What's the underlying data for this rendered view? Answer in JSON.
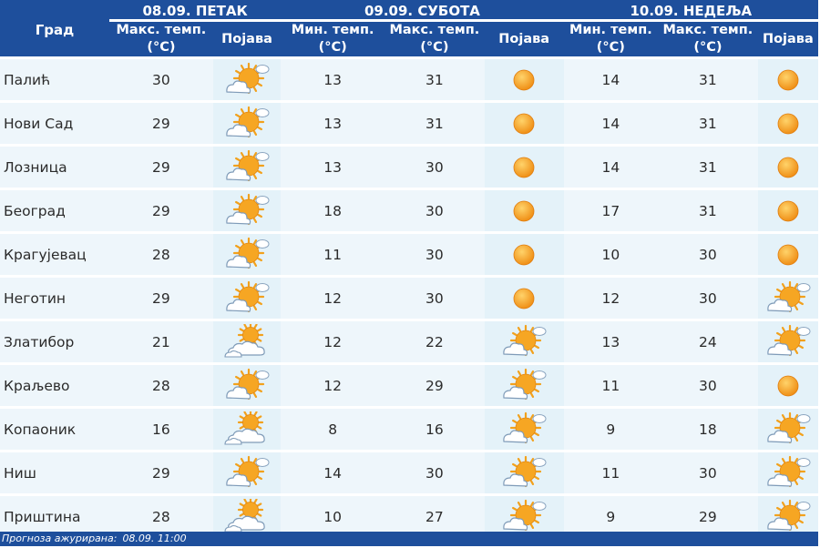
{
  "header": {
    "city_label": "Град",
    "days": [
      {
        "date_label": "08.09. ПЕТАК",
        "max_label": "Макс. темп. (°C)",
        "icon_label": "Појава"
      },
      {
        "date_label": "09.09. СУБОТА",
        "min_label": "Мин. темп. (°C)",
        "max_label": "Макс. темп. (°C)",
        "icon_label": "Појава"
      },
      {
        "date_label": "10.09. НЕДЕЉА",
        "min_label": "Мин. темп. (°C)",
        "max_label": "Макс. темп. (°C)",
        "icon_label": "Појава"
      }
    ]
  },
  "rows": [
    {
      "city": "Палић",
      "d1_max": "30",
      "d1_icon": "sun-cloud-icon",
      "d2_min": "13",
      "d2_max": "31",
      "d2_icon": "sun-icon",
      "d3_min": "14",
      "d3_max": "31",
      "d3_icon": "sun-icon"
    },
    {
      "city": "Нови Сад",
      "d1_max": "29",
      "d1_icon": "sun-cloud-icon",
      "d2_min": "13",
      "d2_max": "31",
      "d2_icon": "sun-icon",
      "d3_min": "14",
      "d3_max": "31",
      "d3_icon": "sun-icon"
    },
    {
      "city": "Лозница",
      "d1_max": "29",
      "d1_icon": "sun-cloud-icon",
      "d2_min": "13",
      "d2_max": "30",
      "d2_icon": "sun-icon",
      "d3_min": "14",
      "d3_max": "31",
      "d3_icon": "sun-icon"
    },
    {
      "city": "Београд",
      "d1_max": "29",
      "d1_icon": "sun-cloud-icon",
      "d2_min": "18",
      "d2_max": "30",
      "d2_icon": "sun-icon",
      "d3_min": "17",
      "d3_max": "31",
      "d3_icon": "sun-icon"
    },
    {
      "city": "Крагујевац",
      "d1_max": "28",
      "d1_icon": "sun-cloud-icon",
      "d2_min": "11",
      "d2_max": "30",
      "d2_icon": "sun-icon",
      "d3_min": "10",
      "d3_max": "30",
      "d3_icon": "sun-icon"
    },
    {
      "city": "Неготин",
      "d1_max": "29",
      "d1_icon": "sun-cloud-icon",
      "d2_min": "12",
      "d2_max": "30",
      "d2_icon": "sun-icon",
      "d3_min": "12",
      "d3_max": "30",
      "d3_icon": "sun-cloud-icon"
    },
    {
      "city": "Златибор",
      "d1_max": "21",
      "d1_icon": "cloud-sun-icon",
      "d2_min": "12",
      "d2_max": "22",
      "d2_icon": "sun-cloud-icon",
      "d3_min": "13",
      "d3_max": "24",
      "d3_icon": "sun-cloud-icon"
    },
    {
      "city": "Краљево",
      "d1_max": "28",
      "d1_icon": "sun-cloud-icon",
      "d2_min": "12",
      "d2_max": "29",
      "d2_icon": "sun-cloud-icon",
      "d3_min": "11",
      "d3_max": "30",
      "d3_icon": "sun-icon"
    },
    {
      "city": "Копаоник",
      "d1_max": "16",
      "d1_icon": "cloud-sun-icon",
      "d2_min": "8",
      "d2_max": "16",
      "d2_icon": "sun-cloud-icon",
      "d3_min": "9",
      "d3_max": "18",
      "d3_icon": "sun-cloud-icon"
    },
    {
      "city": "Ниш",
      "d1_max": "29",
      "d1_icon": "sun-cloud-icon",
      "d2_min": "14",
      "d2_max": "30",
      "d2_icon": "sun-cloud-icon",
      "d3_min": "11",
      "d3_max": "30",
      "d3_icon": "sun-cloud-icon"
    },
    {
      "city": "Приштина",
      "d1_max": "28",
      "d1_icon": "cloud-sun-icon",
      "d2_min": "10",
      "d2_max": "27",
      "d2_icon": "sun-cloud-icon",
      "d3_min": "9",
      "d3_max": "29",
      "d3_icon": "sun-cloud-icon"
    }
  ],
  "footer": {
    "label": "Прогноза ажурирана:",
    "value": "08.09. 11:00"
  },
  "colors": {
    "header_bg": "#1e4f9c",
    "row_bg": "#eef6fb",
    "icon_bg": "#e4f2f9",
    "sun": "#f6a623"
  }
}
